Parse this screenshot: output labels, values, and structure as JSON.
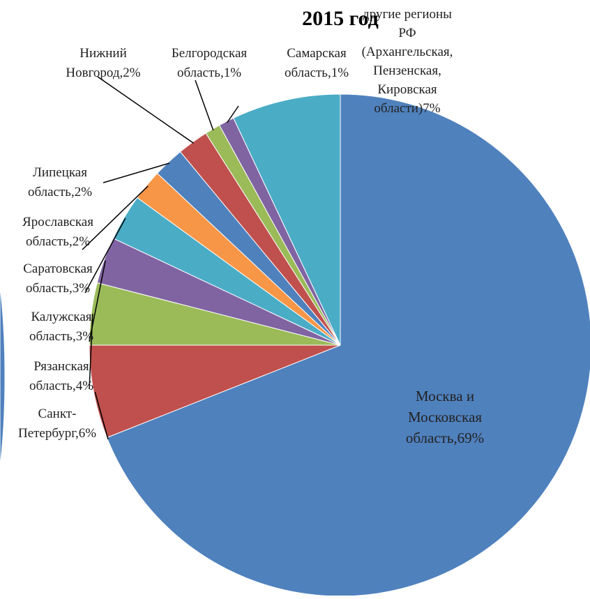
{
  "chart_data": {
    "type": "pie",
    "title": "2015 год",
    "slices": [
      {
        "label_lines": [
          "Москва и",
          "Московская",
          "область,69%"
        ],
        "value": 69,
        "color": "#4F81BD"
      },
      {
        "label_lines": [
          "Санкт-",
          "Петербург,6%"
        ],
        "value": 6,
        "color": "#C0504D"
      },
      {
        "label_lines": [
          "Рязанская",
          "область,4%"
        ],
        "value": 4,
        "color": "#9BBB59"
      },
      {
        "label_lines": [
          "Калужская",
          "область,3%"
        ],
        "value": 3,
        "color": "#8064A2"
      },
      {
        "label_lines": [
          "Саратовская",
          "область,3%"
        ],
        "value": 3,
        "color": "#4BACC6"
      },
      {
        "label_lines": [
          "Ярославская",
          "область,2%"
        ],
        "value": 2,
        "color": "#F79646"
      },
      {
        "label_lines": [
          "Липецкая",
          "область,2%"
        ],
        "value": 2,
        "color": "#4F81BD"
      },
      {
        "label_lines": [
          "Нижний",
          "Новгород,2%"
        ],
        "value": 2,
        "color": "#C0504D"
      },
      {
        "label_lines": [
          "Белгородская",
          "область,1%"
        ],
        "value": 1,
        "color": "#9BBB59"
      },
      {
        "label_lines": [
          "Самарская",
          "область,1%"
        ],
        "value": 1,
        "color": "#8064A2"
      },
      {
        "label_lines": [
          "другие регионы",
          "РФ",
          "(Архангельская,",
          "Пензенская,",
          "Кировская",
          "области)7%"
        ],
        "value": 7,
        "color": "#4BACC6"
      }
    ]
  }
}
